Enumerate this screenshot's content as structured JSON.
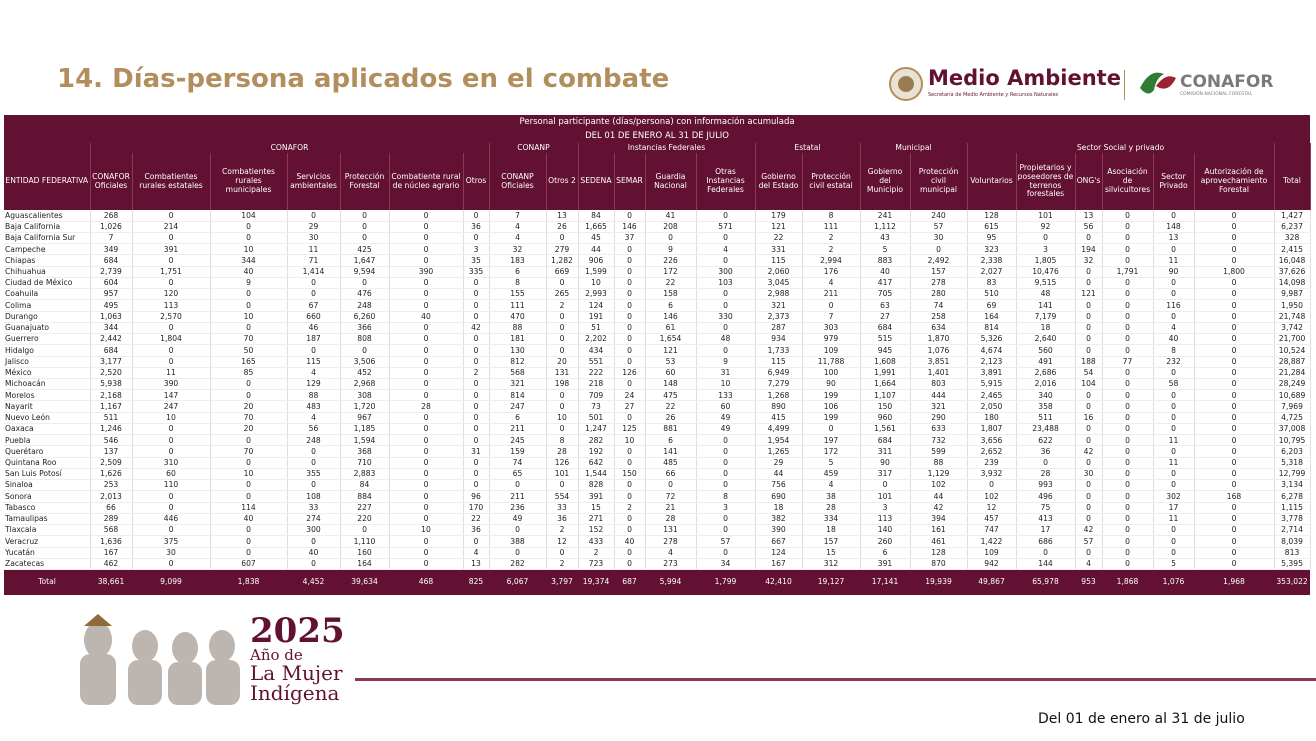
{
  "header": {
    "title": "14. Días-persona aplicados en el combate",
    "logo_main": "Medio Ambiente",
    "logo_sub": "Secretaría de Medio Ambiente y Recursos Naturales",
    "logo_conafor": "CONAFOR",
    "logo_conafor_sub": "COMISIÓN NACIONAL FORESTAL"
  },
  "table": {
    "caption": [
      "Personal participante (días/persona) con información acumulada",
      "DEL 01 DE ENERO AL 31 DE JULIO"
    ],
    "groups": [
      "CONAFOR",
      "CONANP",
      "Instancias Federales",
      "Estatal",
      "Municipal",
      "Sector Social y privado"
    ],
    "columns": [
      "ENTIDAD FEDERATIVA",
      "CONAFOR Oficiales",
      "Combatientes rurales estatales",
      "Combatientes rurales municipales",
      "Servicios ambientales",
      "Protección Forestal",
      "Combatiente rural de núcleo agrario",
      "Otros",
      "CONANP Oficiales",
      "Otros 2",
      "SEDENA",
      "SEMAR",
      "Guardia Nacional",
      "Otras Instancias Federales",
      "Gobierno del Estado",
      "Protección civil estatal",
      "Gobierno del Municipio",
      "Protección civil municipal",
      "Voluntarios",
      "Propietarios y poseedores de terrenos forestales",
      "ONG's",
      "Asociación de silvicultores",
      "Sector Privado",
      "Autorización de aprovechamiento Forestal",
      "Total"
    ],
    "rows": [
      [
        "Aguascalientes",
        "268",
        "0",
        "104",
        "0",
        "0",
        "0",
        "0",
        "7",
        "13",
        "84",
        "0",
        "41",
        "0",
        "179",
        "8",
        "241",
        "240",
        "128",
        "101",
        "13",
        "0",
        "0",
        "0",
        "1,427"
      ],
      [
        "Baja California",
        "1,026",
        "214",
        "0",
        "29",
        "0",
        "0",
        "36",
        "4",
        "26",
        "1,665",
        "146",
        "208",
        "571",
        "121",
        "111",
        "1,112",
        "57",
        "615",
        "92",
        "56",
        "0",
        "148",
        "0",
        "6,237"
      ],
      [
        "Baja California Sur",
        "7",
        "0",
        "0",
        "30",
        "0",
        "0",
        "0",
        "4",
        "0",
        "45",
        "37",
        "0",
        "0",
        "22",
        "2",
        "43",
        "30",
        "95",
        "0",
        "0",
        "0",
        "13",
        "0",
        "328"
      ],
      [
        "Campeche",
        "349",
        "391",
        "10",
        "11",
        "425",
        "0",
        "3",
        "32",
        "279",
        "44",
        "0",
        "9",
        "4",
        "331",
        "2",
        "5",
        "0",
        "323",
        "3",
        "194",
        "0",
        "0",
        "0",
        "2,415"
      ],
      [
        "Chiapas",
        "684",
        "0",
        "344",
        "71",
        "1,647",
        "0",
        "35",
        "183",
        "1,282",
        "906",
        "0",
        "226",
        "0",
        "115",
        "2,994",
        "883",
        "2,492",
        "2,338",
        "1,805",
        "32",
        "0",
        "11",
        "0",
        "16,048"
      ],
      [
        "Chihuahua",
        "2,739",
        "1,751",
        "40",
        "1,414",
        "9,594",
        "390",
        "335",
        "6",
        "669",
        "1,599",
        "0",
        "172",
        "300",
        "2,060",
        "176",
        "40",
        "157",
        "2,027",
        "10,476",
        "0",
        "1,791",
        "90",
        "1,800",
        "37,626"
      ],
      [
        "Ciudad de México",
        "604",
        "0",
        "9",
        "0",
        "0",
        "0",
        "0",
        "8",
        "0",
        "10",
        "0",
        "22",
        "103",
        "3,045",
        "4",
        "417",
        "278",
        "83",
        "9,515",
        "0",
        "0",
        "0",
        "0",
        "14,098"
      ],
      [
        "Coahuila",
        "957",
        "120",
        "0",
        "0",
        "476",
        "0",
        "0",
        "155",
        "265",
        "2,993",
        "0",
        "158",
        "0",
        "2,988",
        "211",
        "705",
        "280",
        "510",
        "48",
        "121",
        "0",
        "0",
        "0",
        "9,987"
      ],
      [
        "Colima",
        "495",
        "113",
        "0",
        "67",
        "248",
        "0",
        "0",
        "111",
        "2",
        "124",
        "0",
        "6",
        "0",
        "321",
        "0",
        "63",
        "74",
        "69",
        "141",
        "0",
        "0",
        "116",
        "0",
        "1,950"
      ],
      [
        "Durango",
        "1,063",
        "2,570",
        "10",
        "660",
        "6,260",
        "40",
        "0",
        "470",
        "0",
        "191",
        "0",
        "146",
        "330",
        "2,373",
        "7",
        "27",
        "258",
        "164",
        "7,179",
        "0",
        "0",
        "0",
        "0",
        "21,748"
      ],
      [
        "Guanajuato",
        "344",
        "0",
        "0",
        "46",
        "366",
        "0",
        "42",
        "88",
        "0",
        "51",
        "0",
        "61",
        "0",
        "287",
        "303",
        "684",
        "634",
        "814",
        "18",
        "0",
        "0",
        "4",
        "0",
        "3,742"
      ],
      [
        "Guerrero",
        "2,442",
        "1,804",
        "70",
        "187",
        "808",
        "0",
        "0",
        "181",
        "0",
        "2,202",
        "0",
        "1,654",
        "48",
        "934",
        "979",
        "515",
        "1,870",
        "5,326",
        "2,640",
        "0",
        "0",
        "40",
        "0",
        "21,700"
      ],
      [
        "Hidalgo",
        "684",
        "0",
        "50",
        "0",
        "0",
        "0",
        "0",
        "130",
        "0",
        "434",
        "0",
        "121",
        "0",
        "1,733",
        "109",
        "945",
        "1,076",
        "4,674",
        "560",
        "0",
        "0",
        "8",
        "0",
        "10,524"
      ],
      [
        "Jalisco",
        "3,177",
        "0",
        "165",
        "115",
        "3,506",
        "0",
        "0",
        "812",
        "20",
        "551",
        "0",
        "53",
        "9",
        "115",
        "11,788",
        "1,608",
        "3,851",
        "2,123",
        "491",
        "188",
        "77",
        "232",
        "0",
        "28,887"
      ],
      [
        "México",
        "2,520",
        "11",
        "85",
        "4",
        "452",
        "0",
        "2",
        "568",
        "131",
        "222",
        "126",
        "60",
        "31",
        "6,949",
        "100",
        "1,991",
        "1,401",
        "3,891",
        "2,686",
        "54",
        "0",
        "0",
        "0",
        "21,284"
      ],
      [
        "Michoacán",
        "5,938",
        "390",
        "0",
        "129",
        "2,968",
        "0",
        "0",
        "321",
        "198",
        "218",
        "0",
        "148",
        "10",
        "7,279",
        "90",
        "1,664",
        "803",
        "5,915",
        "2,016",
        "104",
        "0",
        "58",
        "0",
        "28,249"
      ],
      [
        "Morelos",
        "2,168",
        "147",
        "0",
        "88",
        "308",
        "0",
        "0",
        "814",
        "0",
        "709",
        "24",
        "475",
        "133",
        "1,268",
        "199",
        "1,107",
        "444",
        "2,465",
        "340",
        "0",
        "0",
        "0",
        "0",
        "10,689"
      ],
      [
        "Nayarit",
        "1,167",
        "247",
        "20",
        "483",
        "1,720",
        "28",
        "0",
        "247",
        "0",
        "73",
        "27",
        "22",
        "60",
        "890",
        "106",
        "150",
        "321",
        "2,050",
        "358",
        "0",
        "0",
        "0",
        "0",
        "7,969"
      ],
      [
        "Nuevo León",
        "511",
        "10",
        "70",
        "4",
        "967",
        "0",
        "0",
        "6",
        "10",
        "501",
        "0",
        "26",
        "49",
        "415",
        "199",
        "960",
        "290",
        "180",
        "511",
        "16",
        "0",
        "0",
        "0",
        "4,725"
      ],
      [
        "Oaxaca",
        "1,246",
        "0",
        "20",
        "56",
        "1,185",
        "0",
        "0",
        "211",
        "0",
        "1,247",
        "125",
        "881",
        "49",
        "4,499",
        "0",
        "1,561",
        "633",
        "1,807",
        "23,488",
        "0",
        "0",
        "0",
        "0",
        "37,008"
      ],
      [
        "Puebla",
        "546",
        "0",
        "0",
        "248",
        "1,594",
        "0",
        "0",
        "245",
        "8",
        "282",
        "10",
        "6",
        "0",
        "1,954",
        "197",
        "684",
        "732",
        "3,656",
        "622",
        "0",
        "0",
        "11",
        "0",
        "10,795"
      ],
      [
        "Querétaro",
        "137",
        "0",
        "70",
        "0",
        "368",
        "0",
        "31",
        "159",
        "28",
        "192",
        "0",
        "141",
        "0",
        "1,265",
        "172",
        "311",
        "599",
        "2,652",
        "36",
        "42",
        "0",
        "0",
        "0",
        "6,203"
      ],
      [
        "Quintana Roo",
        "2,509",
        "310",
        "0",
        "0",
        "710",
        "0",
        "0",
        "74",
        "126",
        "642",
        "0",
        "485",
        "0",
        "29",
        "5",
        "90",
        "88",
        "239",
        "0",
        "0",
        "0",
        "11",
        "0",
        "5,318"
      ],
      [
        "San Luis Potosí",
        "1,626",
        "60",
        "10",
        "355",
        "2,883",
        "0",
        "0",
        "65",
        "101",
        "1,544",
        "150",
        "66",
        "0",
        "44",
        "459",
        "317",
        "1,129",
        "3,932",
        "28",
        "30",
        "0",
        "0",
        "0",
        "12,799"
      ],
      [
        "Sinaloa",
        "253",
        "110",
        "0",
        "0",
        "84",
        "0",
        "0",
        "0",
        "0",
        "828",
        "0",
        "0",
        "0",
        "756",
        "4",
        "0",
        "102",
        "0",
        "993",
        "0",
        "0",
        "0",
        "0",
        "3,134"
      ],
      [
        "Sonora",
        "2,013",
        "0",
        "0",
        "108",
        "884",
        "0",
        "96",
        "211",
        "554",
        "391",
        "0",
        "72",
        "8",
        "690",
        "38",
        "101",
        "44",
        "102",
        "496",
        "0",
        "0",
        "302",
        "168",
        "6,278"
      ],
      [
        "Tabasco",
        "66",
        "0",
        "114",
        "33",
        "227",
        "0",
        "170",
        "236",
        "33",
        "15",
        "2",
        "21",
        "3",
        "18",
        "28",
        "3",
        "42",
        "12",
        "75",
        "0",
        "0",
        "17",
        "0",
        "1,115"
      ],
      [
        "Tamaulipas",
        "289",
        "446",
        "40",
        "274",
        "220",
        "0",
        "22",
        "49",
        "36",
        "271",
        "0",
        "28",
        "0",
        "382",
        "334",
        "113",
        "394",
        "457",
        "413",
        "0",
        "0",
        "11",
        "0",
        "3,778"
      ],
      [
        "Tlaxcala",
        "568",
        "0",
        "0",
        "300",
        "0",
        "10",
        "36",
        "0",
        "2",
        "152",
        "0",
        "131",
        "0",
        "390",
        "18",
        "140",
        "161",
        "747",
        "17",
        "42",
        "0",
        "0",
        "0",
        "2,714"
      ],
      [
        "Veracruz",
        "1,636",
        "375",
        "0",
        "0",
        "1,110",
        "0",
        "0",
        "388",
        "12",
        "433",
        "40",
        "278",
        "57",
        "667",
        "157",
        "260",
        "461",
        "1,422",
        "686",
        "57",
        "0",
        "0",
        "0",
        "8,039"
      ],
      [
        "Yucatán",
        "167",
        "30",
        "0",
        "40",
        "160",
        "0",
        "4",
        "0",
        "0",
        "2",
        "0",
        "4",
        "0",
        "124",
        "15",
        "6",
        "128",
        "109",
        "0",
        "0",
        "0",
        "0",
        "0",
        "813"
      ],
      [
        "Zacatecas",
        "462",
        "0",
        "607",
        "0",
        "164",
        "0",
        "13",
        "282",
        "2",
        "723",
        "0",
        "273",
        "34",
        "167",
        "312",
        "391",
        "870",
        "942",
        "144",
        "4",
        "0",
        "5",
        "0",
        "5,395"
      ]
    ],
    "total": [
      "Total",
      "38,661",
      "9,099",
      "1,838",
      "4,452",
      "39,634",
      "468",
      "825",
      "6,067",
      "3,797",
      "19,374",
      "687",
      "5,994",
      "1,799",
      "42,410",
      "19,127",
      "17,141",
      "19,939",
      "49,867",
      "65,978",
      "953",
      "1,868",
      "1,076",
      "1,968",
      "353,022"
    ]
  },
  "footer": {
    "emblem_year": "2025",
    "emblem_line1": "Año de",
    "emblem_line2": "La Mujer",
    "emblem_line3": "Indígena",
    "date": "Del 01 de enero al 31 de julio"
  }
}
